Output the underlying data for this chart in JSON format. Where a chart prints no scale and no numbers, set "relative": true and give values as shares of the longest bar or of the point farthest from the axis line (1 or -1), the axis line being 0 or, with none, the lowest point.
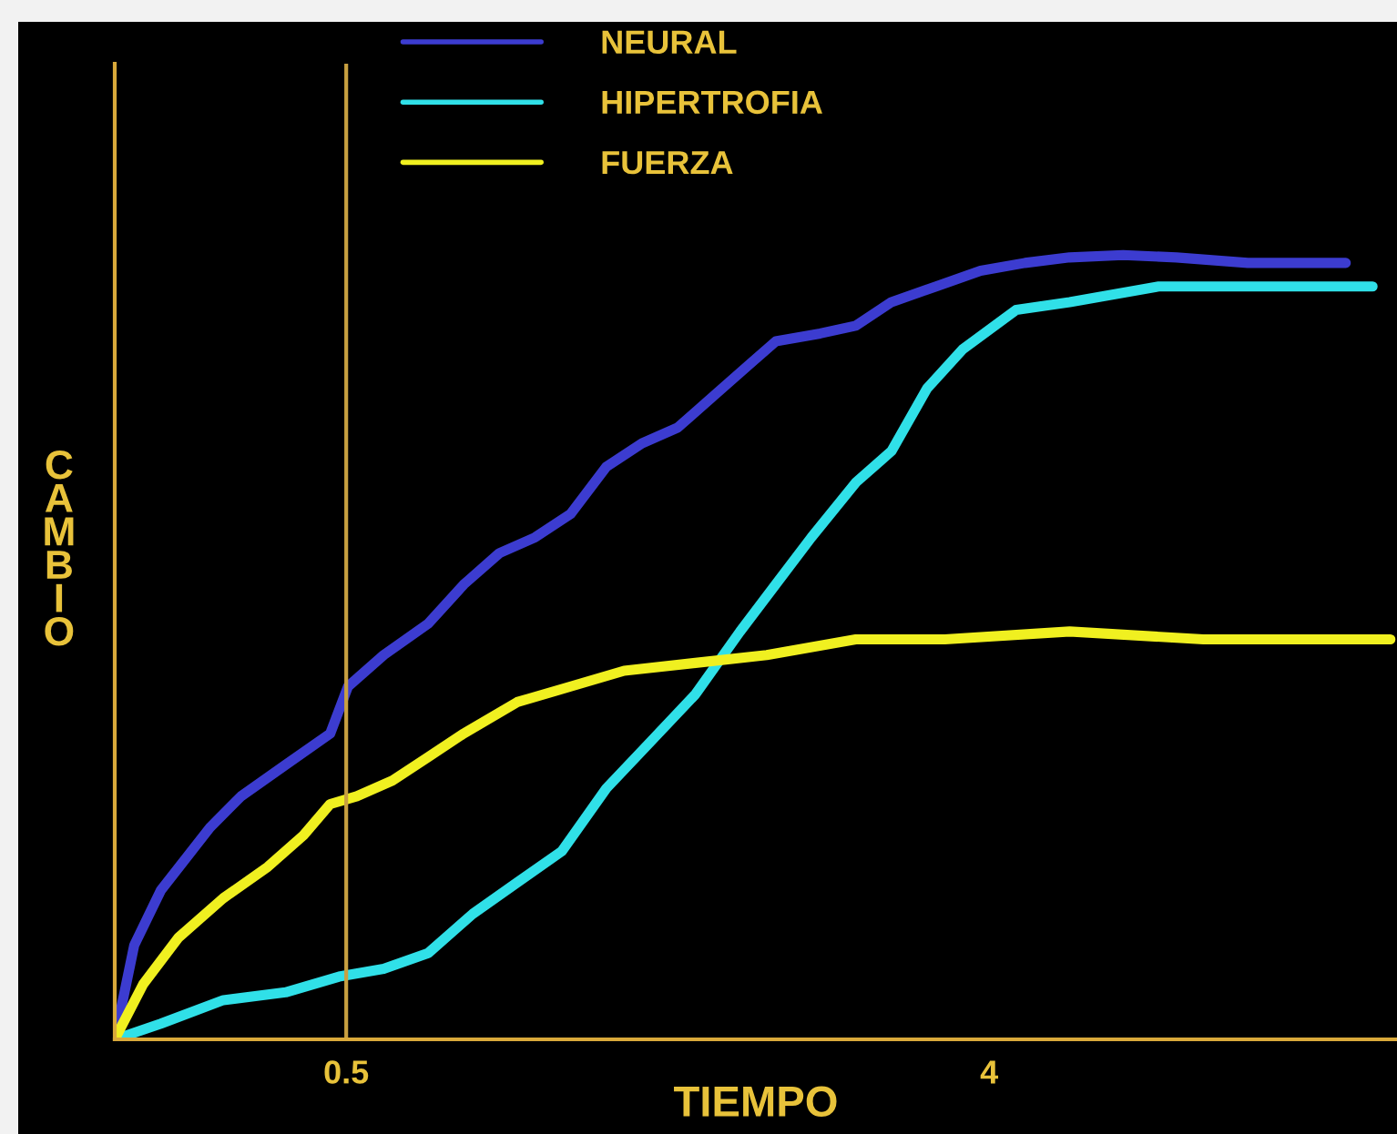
{
  "chart_data": {
    "type": "line",
    "relative": true,
    "xlabel": "TIEMPO",
    "ylabel": "CAMBIO",
    "xlim": [
      -0.76,
      6.22
    ],
    "xticks": [
      0.5,
      4
    ],
    "legend": "top",
    "grid": false,
    "marker": "none",
    "line_style": "solid",
    "ref_lines": [
      {
        "axis": "x",
        "value": 0.5,
        "label": null,
        "color": "#c8a040"
      }
    ],
    "series": [
      {
        "name": "NEURAL",
        "color": "#3c3cd0",
        "x": [
          -0.76,
          -0.654,
          -0.509,
          -0.242,
          -0.072,
          0.17,
          0.413,
          0.51,
          0.704,
          0.946,
          1.14,
          1.334,
          1.528,
          1.722,
          1.916,
          2.11,
          2.304,
          2.498,
          2.692,
          2.838,
          3.08,
          3.274,
          3.468,
          3.711,
          3.953,
          4.195,
          4.438,
          4.729,
          5.02,
          5.408,
          5.941
        ],
        "values": [
          0,
          0.12,
          0.19,
          0.27,
          0.31,
          0.35,
          0.39,
          0.45,
          0.49,
          0.53,
          0.58,
          0.62,
          0.64,
          0.67,
          0.73,
          0.76,
          0.78,
          0.82,
          0.86,
          0.89,
          0.9,
          0.91,
          0.94,
          0.96,
          0.98,
          0.99,
          0.997,
          1,
          0.997,
          0.99,
          0.99
        ]
      },
      {
        "name": "HIPERTROFIA",
        "color": "#30e0e8",
        "x": [
          -0.76,
          -0.509,
          -0.169,
          0.17,
          0.461,
          0.704,
          0.946,
          1.189,
          1.431,
          1.674,
          1.916,
          2.159,
          2.401,
          2.644,
          2.838,
          3.032,
          3.274,
          3.468,
          3.662,
          3.856,
          4.147,
          4.438,
          4.923,
          5.408,
          6.087
        ],
        "values": [
          0,
          0.02,
          0.05,
          0.06,
          0.08,
          0.09,
          0.11,
          0.16,
          0.2,
          0.24,
          0.32,
          0.38,
          0.44,
          0.52,
          0.58,
          0.64,
          0.71,
          0.75,
          0.83,
          0.88,
          0.93,
          0.94,
          0.96,
          0.96,
          0.96
        ]
      },
      {
        "name": "FUERZA",
        "color": "#f0f020",
        "x": [
          -0.76,
          -0.606,
          -0.412,
          -0.169,
          0.073,
          0.267,
          0.413,
          0.558,
          0.752,
          0.946,
          1.14,
          1.431,
          1.722,
          2.013,
          2.401,
          2.789,
          3.274,
          3.759,
          4.438,
          5.166,
          6.184
        ],
        "values": [
          0,
          0.07,
          0.13,
          0.18,
          0.22,
          0.26,
          0.3,
          0.31,
          0.33,
          0.36,
          0.39,
          0.43,
          0.45,
          0.47,
          0.48,
          0.49,
          0.51,
          0.51,
          0.52,
          0.51,
          0.51
        ]
      }
    ]
  }
}
